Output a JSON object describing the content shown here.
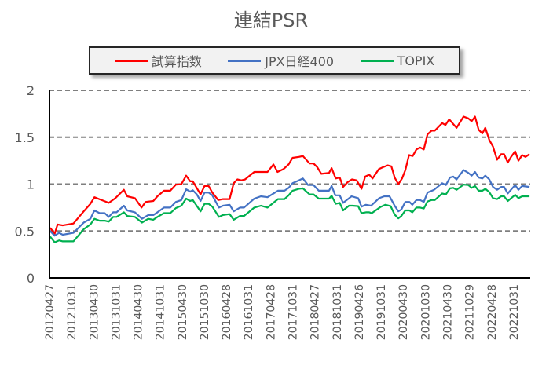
{
  "chart_data": {
    "type": "line",
    "title": "連結PSR",
    "xlabel": "",
    "ylabel": "",
    "ylim": [
      0,
      2
    ],
    "yticks": [
      "0",
      "0.5",
      "1",
      "1.5",
      "2"
    ],
    "ytick_values": [
      0,
      0.5,
      1,
      1.5,
      2
    ],
    "x_unit": "months since 2012-04",
    "xlim": [
      0,
      130.5
    ],
    "xtick_labels": [
      "20120427",
      "20121031",
      "20130430",
      "20131031",
      "20140430",
      "20141031",
      "20150430",
      "20151030",
      "20160428",
      "20161031",
      "20170428",
      "20171031",
      "20180427",
      "20181031",
      "20190426",
      "20191031",
      "20200430",
      "20201030",
      "20210430",
      "20211029",
      "20220428",
      "20221031"
    ],
    "grid": "horizontal dashed",
    "legend_position": "top",
    "series": [
      {
        "name": "試算指数",
        "color": "#ff0000",
        "points": [
          [
            0.2,
            0.535
          ],
          [
            1.4,
            0.47
          ],
          [
            2.2,
            0.57
          ],
          [
            3.6,
            0.56
          ],
          [
            6.5,
            0.58
          ],
          [
            9.3,
            0.71
          ],
          [
            11.1,
            0.79
          ],
          [
            12.2,
            0.86
          ],
          [
            16.1,
            0.8
          ],
          [
            17.9,
            0.85
          ],
          [
            20.2,
            0.94
          ],
          [
            21.1,
            0.87
          ],
          [
            23.2,
            0.85
          ],
          [
            25,
            0.75
          ],
          [
            26.1,
            0.81
          ],
          [
            28.2,
            0.82
          ],
          [
            29.3,
            0.87
          ],
          [
            31.1,
            0.93
          ],
          [
            32.8,
            0.93
          ],
          [
            34.3,
            0.995
          ],
          [
            35.8,
            1.0
          ],
          [
            37.1,
            1.09
          ],
          [
            38.2,
            1.03
          ],
          [
            38.9,
            1.03
          ],
          [
            41,
            0.89
          ],
          [
            42.1,
            0.98
          ],
          [
            43.2,
            0.98
          ],
          [
            44.2,
            0.91
          ],
          [
            45.8,
            0.83
          ],
          [
            47.1,
            0.84
          ],
          [
            48.9,
            0.84
          ],
          [
            50,
            1.01
          ],
          [
            51,
            1.05
          ],
          [
            52.1,
            1.04
          ],
          [
            53.1,
            1.05
          ],
          [
            55.6,
            1.13
          ],
          [
            57,
            1.13
          ],
          [
            59.2,
            1.13
          ],
          [
            60.8,
            1.21
          ],
          [
            61.9,
            1.13
          ],
          [
            63.5,
            1.16
          ],
          [
            64.9,
            1.21
          ],
          [
            66,
            1.28
          ],
          [
            67.7,
            1.29
          ],
          [
            68.8,
            1.3
          ],
          [
            70.6,
            1.22
          ],
          [
            71.7,
            1.22
          ],
          [
            72.7,
            1.18
          ],
          [
            73.8,
            1.11
          ],
          [
            75.9,
            1.12
          ],
          [
            76.6,
            1.17
          ],
          [
            77.7,
            1.06
          ],
          [
            78.8,
            1.07
          ],
          [
            79.7,
            0.97
          ],
          [
            80.9,
            1.02
          ],
          [
            82.1,
            1.05
          ],
          [
            83.4,
            1.04
          ],
          [
            84.7,
            0.95
          ],
          [
            85.7,
            1.08
          ],
          [
            86.8,
            1.1
          ],
          [
            87.7,
            1.06
          ],
          [
            89.4,
            1.16
          ],
          [
            90.5,
            1.18
          ],
          [
            91.8,
            1.2
          ],
          [
            92.8,
            1.19
          ],
          [
            93.7,
            1.07
          ],
          [
            94.7,
            1.0
          ],
          [
            95.7,
            1.06
          ],
          [
            96.6,
            1.15
          ],
          [
            97.6,
            1.31
          ],
          [
            98.6,
            1.3
          ],
          [
            99.6,
            1.37
          ],
          [
            100.6,
            1.39
          ],
          [
            101.6,
            1.37
          ],
          [
            102.6,
            1.53
          ],
          [
            103.7,
            1.57
          ],
          [
            104.6,
            1.57
          ],
          [
            106.6,
            1.65
          ],
          [
            107.5,
            1.63
          ],
          [
            108.5,
            1.69
          ],
          [
            110.5,
            1.6
          ],
          [
            112.4,
            1.72
          ],
          [
            113.7,
            1.7
          ],
          [
            114.6,
            1.67
          ],
          [
            115.5,
            1.72
          ],
          [
            116.5,
            1.58
          ],
          [
            117.5,
            1.54
          ],
          [
            118.3,
            1.6
          ],
          [
            119.4,
            1.47
          ],
          [
            120.4,
            1.4
          ],
          [
            121.5,
            1.26
          ],
          [
            122.6,
            1.32
          ],
          [
            123.4,
            1.32
          ],
          [
            124.4,
            1.23
          ],
          [
            125.3,
            1.29
          ],
          [
            126.4,
            1.35
          ],
          [
            127.3,
            1.25
          ],
          [
            128.3,
            1.31
          ],
          [
            129.2,
            1.29
          ],
          [
            130.3,
            1.32
          ]
        ]
      },
      {
        "name": "JPX日経400",
        "color": "#4472c4",
        "points": [
          [
            0.2,
            0.5
          ],
          [
            1.4,
            0.45
          ],
          [
            2.6,
            0.48
          ],
          [
            3.6,
            0.46
          ],
          [
            6.5,
            0.48
          ],
          [
            9.3,
            0.59
          ],
          [
            11.1,
            0.63
          ],
          [
            12.2,
            0.72
          ],
          [
            13.6,
            0.69
          ],
          [
            15,
            0.69
          ],
          [
            16.1,
            0.65
          ],
          [
            17.3,
            0.7
          ],
          [
            18.2,
            0.7
          ],
          [
            20.2,
            0.77
          ],
          [
            21.1,
            0.72
          ],
          [
            23.2,
            0.7
          ],
          [
            25.1,
            0.63
          ],
          [
            26.8,
            0.67
          ],
          [
            28.2,
            0.67
          ],
          [
            29.3,
            0.7
          ],
          [
            31.1,
            0.75
          ],
          [
            32.8,
            0.75
          ],
          [
            34.3,
            0.81
          ],
          [
            35.8,
            0.83
          ],
          [
            37.1,
            0.945
          ],
          [
            38.2,
            0.92
          ],
          [
            38.9,
            0.935
          ],
          [
            40,
            0.89
          ],
          [
            41,
            0.82
          ],
          [
            42.1,
            0.91
          ],
          [
            43.2,
            0.91
          ],
          [
            44.2,
            0.88
          ],
          [
            46,
            0.75
          ],
          [
            47.1,
            0.77
          ],
          [
            48.9,
            0.78
          ],
          [
            50,
            0.71
          ],
          [
            51.7,
            0.75
          ],
          [
            52.8,
            0.75
          ],
          [
            55.6,
            0.845
          ],
          [
            57.4,
            0.87
          ],
          [
            59.2,
            0.86
          ],
          [
            62,
            0.93
          ],
          [
            63.8,
            0.93
          ],
          [
            64.9,
            0.96
          ],
          [
            66,
            1.01
          ],
          [
            67.7,
            1.04
          ],
          [
            68.8,
            1.06
          ],
          [
            70.2,
            0.99
          ],
          [
            71.7,
            0.99
          ],
          [
            73.1,
            0.93
          ],
          [
            74.5,
            0.93
          ],
          [
            75.9,
            0.93
          ],
          [
            76.6,
            0.98
          ],
          [
            77.6,
            0.88
          ],
          [
            78.8,
            0.88
          ],
          [
            79.7,
            0.8
          ],
          [
            82,
            0.87
          ],
          [
            83.8,
            0.85
          ],
          [
            84.7,
            0.76
          ],
          [
            85.9,
            0.78
          ],
          [
            87.3,
            0.77
          ],
          [
            89.5,
            0.85
          ],
          [
            90.9,
            0.87
          ],
          [
            92.3,
            0.87
          ],
          [
            93.7,
            0.77
          ],
          [
            94.7,
            0.71
          ],
          [
            95.5,
            0.73
          ],
          [
            96.6,
            0.81
          ],
          [
            97.7,
            0.81
          ],
          [
            98.5,
            0.78
          ],
          [
            99.6,
            0.83
          ],
          [
            100.6,
            0.83
          ],
          [
            101.6,
            0.81
          ],
          [
            102.6,
            0.91
          ],
          [
            104.4,
            0.94
          ],
          [
            106.6,
            1.01
          ],
          [
            107.6,
            0.99
          ],
          [
            108.7,
            1.07
          ],
          [
            109.6,
            1.08
          ],
          [
            110.5,
            1.05
          ],
          [
            112.4,
            1.15
          ],
          [
            113.7,
            1.12
          ],
          [
            114.6,
            1.09
          ],
          [
            115.5,
            1.13
          ],
          [
            116.5,
            1.07
          ],
          [
            117.5,
            1.06
          ],
          [
            118.3,
            1.09
          ],
          [
            119.4,
            1.05
          ],
          [
            120.4,
            0.97
          ],
          [
            121.5,
            0.94
          ],
          [
            122.6,
            0.97
          ],
          [
            123.4,
            0.97
          ],
          [
            124.4,
            0.9
          ],
          [
            126.4,
            0.99
          ],
          [
            127.3,
            0.94
          ],
          [
            128.3,
            0.98
          ],
          [
            130.3,
            0.97
          ]
        ]
      },
      {
        "name": "TOPIX",
        "color": "#00b050",
        "points": [
          [
            0.2,
            0.44
          ],
          [
            1.4,
            0.38
          ],
          [
            2.6,
            0.4
          ],
          [
            3.6,
            0.39
          ],
          [
            6.5,
            0.39
          ],
          [
            9.3,
            0.52
          ],
          [
            11.1,
            0.57
          ],
          [
            12.2,
            0.63
          ],
          [
            13.6,
            0.61
          ],
          [
            15,
            0.61
          ],
          [
            16.1,
            0.6
          ],
          [
            17.3,
            0.65
          ],
          [
            18.2,
            0.65
          ],
          [
            20.2,
            0.7
          ],
          [
            21.1,
            0.66
          ],
          [
            23.2,
            0.65
          ],
          [
            25.1,
            0.59
          ],
          [
            26.8,
            0.63
          ],
          [
            28.2,
            0.62
          ],
          [
            29.3,
            0.65
          ],
          [
            31.1,
            0.69
          ],
          [
            32.8,
            0.69
          ],
          [
            34.3,
            0.745
          ],
          [
            35.8,
            0.77
          ],
          [
            37.1,
            0.845
          ],
          [
            38.2,
            0.82
          ],
          [
            38.9,
            0.83
          ],
          [
            41,
            0.71
          ],
          [
            42.1,
            0.79
          ],
          [
            43.2,
            0.79
          ],
          [
            44.2,
            0.76
          ],
          [
            46,
            0.65
          ],
          [
            47.1,
            0.67
          ],
          [
            48.9,
            0.68
          ],
          [
            50,
            0.62
          ],
          [
            51.7,
            0.66
          ],
          [
            52.8,
            0.66
          ],
          [
            55.6,
            0.75
          ],
          [
            57.4,
            0.77
          ],
          [
            59.2,
            0.75
          ],
          [
            62,
            0.84
          ],
          [
            63.8,
            0.84
          ],
          [
            64.9,
            0.88
          ],
          [
            66,
            0.93
          ],
          [
            67.7,
            0.95
          ],
          [
            68.8,
            0.955
          ],
          [
            70.6,
            0.89
          ],
          [
            71.7,
            0.89
          ],
          [
            73.1,
            0.845
          ],
          [
            74.5,
            0.845
          ],
          [
            75.9,
            0.845
          ],
          [
            76.6,
            0.875
          ],
          [
            77.7,
            0.79
          ],
          [
            78.8,
            0.8
          ],
          [
            79.7,
            0.72
          ],
          [
            81.3,
            0.77
          ],
          [
            82.3,
            0.77
          ],
          [
            83.8,
            0.765
          ],
          [
            84.7,
            0.69
          ],
          [
            85.9,
            0.7
          ],
          [
            86.8,
            0.7
          ],
          [
            87.5,
            0.69
          ],
          [
            89.8,
            0.755
          ],
          [
            91.2,
            0.78
          ],
          [
            92.6,
            0.765
          ],
          [
            93.7,
            0.675
          ],
          [
            94.7,
            0.635
          ],
          [
            95.5,
            0.66
          ],
          [
            96.6,
            0.72
          ],
          [
            97.7,
            0.72
          ],
          [
            98.5,
            0.7
          ],
          [
            99.6,
            0.75
          ],
          [
            100.6,
            0.75
          ],
          [
            101.6,
            0.74
          ],
          [
            102.6,
            0.815
          ],
          [
            103.7,
            0.83
          ],
          [
            104.6,
            0.83
          ],
          [
            106.6,
            0.9
          ],
          [
            107.6,
            0.89
          ],
          [
            108.7,
            0.955
          ],
          [
            109.6,
            0.96
          ],
          [
            110.5,
            0.94
          ],
          [
            112.4,
            0.995
          ],
          [
            113.7,
            0.99
          ],
          [
            114.6,
            0.96
          ],
          [
            115.5,
            0.98
          ],
          [
            116.5,
            0.93
          ],
          [
            117.5,
            0.93
          ],
          [
            118.3,
            0.95
          ],
          [
            119.4,
            0.915
          ],
          [
            120.4,
            0.85
          ],
          [
            121.5,
            0.84
          ],
          [
            122.6,
            0.87
          ],
          [
            123.4,
            0.87
          ],
          [
            124.4,
            0.82
          ],
          [
            126.4,
            0.885
          ],
          [
            127.3,
            0.85
          ],
          [
            128.3,
            0.87
          ],
          [
            130.3,
            0.87
          ]
        ]
      }
    ]
  }
}
